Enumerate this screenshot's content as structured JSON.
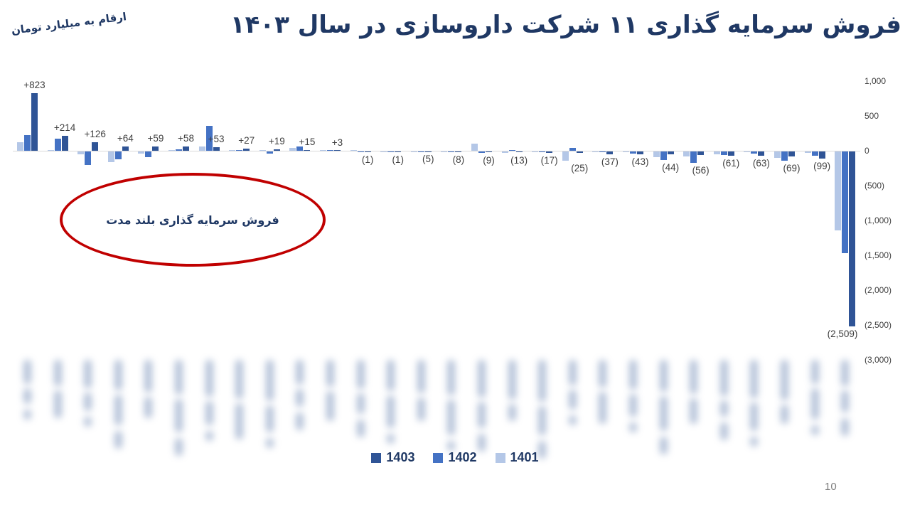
{
  "header": {
    "title": "فروش سرمایه گذاری ۱۱ شرکت داروسازی در سال ۱۴۰۳",
    "units_note": "ارقام به میلیارد تومان"
  },
  "colors": {
    "title_navy": "#1f3864",
    "label_gray": "#3f3f3f",
    "axis_gray": "#404040",
    "zero_line": "#d9d9d9",
    "annotation_red": "#c00000",
    "blur_blob": "#9badcb",
    "page_gray": "#7f7f7f"
  },
  "annotation": {
    "text": "فروش سرمایه گذاری بلند مدت"
  },
  "legend": [
    {
      "label": "1403",
      "color": "#2f5496"
    },
    {
      "label": "1402",
      "color": "#4472c4"
    },
    {
      "label": "1401",
      "color": "#b4c7e7"
    }
  ],
  "page": {
    "number": "10"
  },
  "chart_data": {
    "type": "bar",
    "title": "فروش سرمایه گذاری ۱۱ شرکت داروسازی در سال ۱۴۰۳",
    "ylabel": "میلیارد تومان",
    "ylim": [
      -3000,
      1000
    ],
    "grid": false,
    "legend_position": "bottom",
    "categories_note": "28 pharmaceutical company names, blurred/redacted, rotated vertical",
    "y_ticks": [
      {
        "label": "1,000",
        "value": 1000
      },
      {
        "label": "500",
        "value": 500
      },
      {
        "label": "0",
        "value": 0
      },
      {
        "label": "(500)",
        "value": -500
      },
      {
        "label": "(1,000)",
        "value": -1000
      },
      {
        "label": "(1,500)",
        "value": -1500
      },
      {
        "label": "(2,000)",
        "value": -2000
      },
      {
        "label": "(2,500)",
        "value": -2500
      },
      {
        "label": "(3,000)",
        "value": -3000
      }
    ],
    "point_labels_1403": [
      "+823",
      "+214",
      "+126",
      "+64",
      "+59",
      "+58",
      "+53",
      "+27",
      "+19",
      "+15",
      "+3",
      "(1)",
      "(1)",
      "(5)",
      "(8)",
      "(9)",
      "(13)",
      "(17)",
      "(25)",
      "(37)",
      "(43)",
      "(44)",
      "(56)",
      "(61)",
      "(63)",
      "(69)",
      "(99)",
      "(2,509)"
    ],
    "series": [
      {
        "name": "1401",
        "color": "#b4c7e7",
        "values": [
          122,
          15,
          -40,
          -150,
          -35,
          5,
          60,
          3,
          4,
          40,
          8,
          2,
          -5,
          -3,
          -2,
          100,
          -20,
          -3,
          -130,
          -8,
          -10,
          -80,
          -70,
          -45,
          -8,
          -95,
          -20,
          -1130
        ]
      },
      {
        "name": "1402",
        "color": "#4472c4",
        "values": [
          224,
          175,
          -195,
          -115,
          -80,
          25,
          360,
          8,
          -35,
          65,
          4,
          -12,
          -15,
          -5,
          -4,
          -18,
          5,
          -6,
          40,
          -10,
          -30,
          -120,
          -160,
          -55,
          -35,
          -130,
          -60,
          -1460
        ]
      },
      {
        "name": "1403",
        "color": "#2f5496",
        "values": [
          823,
          214,
          126,
          64,
          59,
          58,
          53,
          27,
          19,
          15,
          3,
          -1,
          -1,
          -5,
          -8,
          -9,
          -13,
          -17,
          -25,
          -37,
          -43,
          -44,
          -56,
          -61,
          -63,
          -69,
          -99,
          -2509
        ]
      }
    ]
  }
}
